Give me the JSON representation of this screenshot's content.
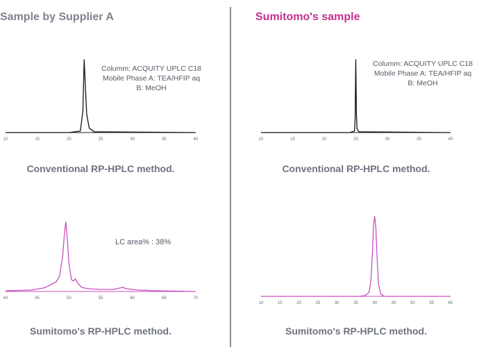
{
  "left": {
    "heading": "Sample by Supplier A",
    "heading_color": "#80838e",
    "top_label": "Conventional RP-HPLC method.",
    "bottom_label": "Sumitomo's RP-HPLC method.",
    "conditions": [
      "Columm: ACQUITY UPLC C18",
      "Mobile Phase A: TEA/HFIP aq",
      "B: MeOH"
    ],
    "annotation": "LC area% : 38%"
  },
  "right": {
    "heading": "Sumitomo's sample",
    "heading_color": "#c2318f",
    "top_label": "Conventional RP-HPLC method.",
    "bottom_label": "Sumitomo's RP-HPLC method.",
    "conditions": [
      "Columm: ACQUITY UPLC C18",
      "Mobile Phase A: TEA/HFIP aq",
      "B: MeOH"
    ]
  },
  "chart_data": [
    {
      "id": "supplierA-conventional",
      "type": "line",
      "color": "#111111",
      "xlim": [
        10,
        40
      ],
      "ylim": [
        0,
        100
      ],
      "xticks": [
        10,
        15,
        20,
        25,
        30,
        35,
        40
      ],
      "series": [
        {
          "x": [
            10,
            20,
            21.8,
            22.2,
            22.4,
            22.6,
            22.8,
            23.2,
            24,
            40
          ],
          "y": [
            0,
            0,
            2,
            30,
            100,
            60,
            25,
            6,
            1,
            0
          ]
        }
      ]
    },
    {
      "id": "sumitomo-conventional",
      "type": "line",
      "color": "#111111",
      "xlim": [
        10,
        40
      ],
      "ylim": [
        0,
        100
      ],
      "xticks": [
        10,
        15,
        20,
        25,
        30,
        35,
        40
      ],
      "series": [
        {
          "x": [
            10,
            24,
            24.8,
            24.9,
            25,
            25.1,
            25.2,
            25.5,
            40
          ],
          "y": [
            0,
            0,
            2,
            20,
            100,
            25,
            5,
            1,
            0
          ]
        }
      ]
    },
    {
      "id": "supplierA-sumitomo-method",
      "type": "line",
      "color": "#c74fbd",
      "xlim": [
        40,
        70
      ],
      "ylim": [
        0,
        100
      ],
      "xticks": [
        40,
        45,
        50,
        55,
        60,
        65,
        70
      ],
      "series": [
        {
          "x": [
            40,
            44,
            46,
            47,
            48,
            48.5,
            49,
            49.3,
            49.5,
            49.7,
            50,
            50.4,
            50.7,
            51,
            51.4,
            52,
            53,
            55,
            57,
            58,
            58.5,
            59,
            61,
            64,
            70
          ],
          "y": [
            1,
            2,
            5,
            9,
            14,
            22,
            50,
            85,
            100,
            80,
            40,
            17,
            15,
            18,
            12,
            6,
            4,
            3,
            3,
            5,
            6,
            4,
            2,
            1,
            0
          ]
        }
      ]
    },
    {
      "id": "sumitomo-sumitomo-method",
      "type": "line",
      "color": "#c74fbd",
      "xlim": [
        10,
        60
      ],
      "ylim": [
        0,
        100
      ],
      "xticks": [
        10,
        15,
        20,
        25,
        30,
        35,
        40,
        45,
        50,
        55,
        60
      ],
      "series": [
        {
          "x": [
            10,
            36,
            37.5,
            38.5,
            39,
            39.4,
            39.7,
            40,
            40.3,
            40.6,
            41,
            41.6,
            42.5,
            60
          ],
          "y": [
            0,
            0,
            1,
            5,
            20,
            55,
            90,
            100,
            85,
            50,
            15,
            3,
            0,
            0
          ]
        }
      ]
    }
  ]
}
